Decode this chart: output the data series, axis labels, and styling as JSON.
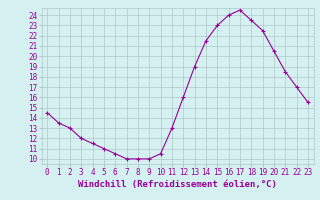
{
  "x": [
    0,
    1,
    2,
    3,
    4,
    5,
    6,
    7,
    8,
    9,
    10,
    11,
    12,
    13,
    14,
    15,
    16,
    17,
    18,
    19,
    20,
    21,
    22,
    23
  ],
  "y": [
    14.5,
    13.5,
    13.0,
    12.0,
    11.5,
    11.0,
    10.5,
    10.0,
    10.0,
    10.0,
    10.5,
    13.0,
    16.0,
    19.0,
    21.5,
    23.0,
    24.0,
    24.5,
    23.5,
    22.5,
    20.5,
    18.5,
    17.0,
    15.5
  ],
  "line_color": "#990099",
  "marker": "+",
  "bg_color": "#d4f0f0",
  "grid_color": "#b0c8c8",
  "xlabel": "Windchill (Refroidissement éolien,°C)",
  "xlim": [
    -0.5,
    23.5
  ],
  "ylim": [
    9.5,
    24.7
  ],
  "yticks": [
    10,
    11,
    12,
    13,
    14,
    15,
    16,
    17,
    18,
    19,
    20,
    21,
    22,
    23,
    24
  ],
  "xticks": [
    0,
    1,
    2,
    3,
    4,
    5,
    6,
    7,
    8,
    9,
    10,
    11,
    12,
    13,
    14,
    15,
    16,
    17,
    18,
    19,
    20,
    21,
    22,
    23
  ],
  "label_color": "#990099",
  "tick_color": "#990099",
  "font_size": 5.5,
  "xlabel_fontsize": 6.5
}
